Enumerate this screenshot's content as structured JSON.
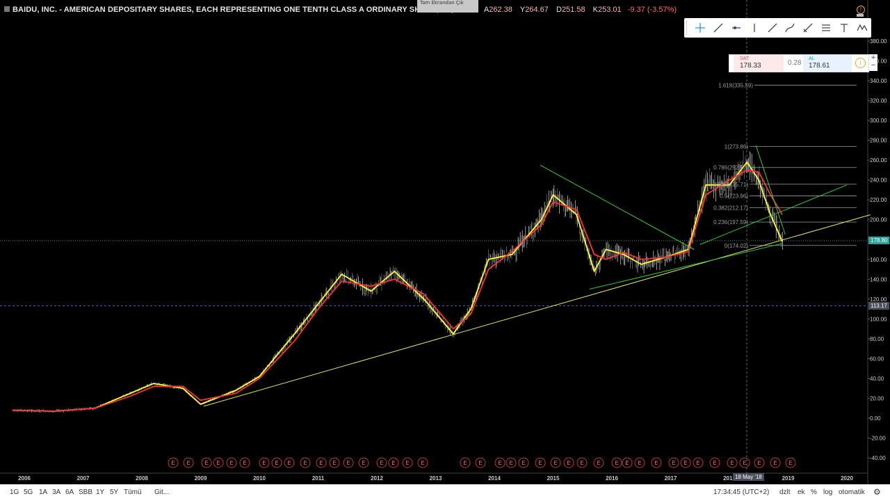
{
  "header": {
    "title": "BAIDU, INC. - AMERICAN DEPOSITARY SHARES, EACH REPRESENTING ONE TENTH CLASS A ORDINARY SHARE, 1G, BATS",
    "open_label": "A",
    "open": "262.38",
    "high_label": "Y",
    "high": "264.67",
    "low_label": "D",
    "low": "251.58",
    "close_label": "K",
    "close": "253.01",
    "change": "-9.37 (-3.57%)",
    "exit_fullscreen": "Tam Ekrandan Çık"
  },
  "trade_panel": {
    "sell_label": "SAT",
    "sell_price": "178.33",
    "spread": "0.28",
    "buy_label": "AL",
    "buy_price": "178.61",
    "plus": "+",
    "minus": "−"
  },
  "badges": {
    "last_price": "178.80",
    "crosshair_price": "113.17",
    "crosshair_date": "18 May '18"
  },
  "bottom_bar": {
    "ranges": [
      "1G",
      "5G",
      "1A",
      "3A",
      "6A",
      "SBB",
      "1Y",
      "5Y",
      "Tümü"
    ],
    "goto": "Git...",
    "clock": "17:34:45 (UTC+2)",
    "adjust": "dzlt",
    "ext": "ek",
    "percent": "%",
    "log": "log",
    "auto": "otomatik"
  },
  "toolbar_tools": [
    "crosshair-icon",
    "trend-line-icon",
    "horizontal-ray-icon",
    "vertical-line-icon",
    "ray-icon",
    "curve-icon",
    "brush-icon",
    "fib-lines-icon",
    "text-icon",
    "elliott-icon",
    "pattern-icon"
  ],
  "chart_data": {
    "type": "line",
    "y_ticks": [
      "380.00",
      "360.00",
      "340.00",
      "320.00",
      "300.00",
      "280.00",
      "260.00",
      "240.00",
      "220.00",
      "200.00",
      "180.00",
      "160.00",
      "140.00",
      "120.00",
      "100.00",
      "80.00",
      "60.00",
      "40.00",
      "20.00",
      "0.00",
      "-20.00",
      "-40.00"
    ],
    "x_ticks": [
      "2006",
      "2007",
      "2008",
      "2009",
      "2010",
      "2011",
      "2012",
      "2013",
      "2014",
      "2015",
      "2016",
      "2017",
      "2018",
      "2019",
      "2020"
    ],
    "ylim": [
      -40,
      380
    ],
    "fib_levels": [
      {
        "label": "1.618(335.59)",
        "value": 335.59
      },
      {
        "label": "1(273.86)",
        "value": 273.86
      },
      {
        "label": "0.786(252.57)",
        "value": 252.57
      },
      {
        "label": "0.618(235.71)",
        "value": 235.71
      },
      {
        "label": "0.5(223.96)",
        "value": 223.96
      },
      {
        "label": "0.382(212.17)",
        "value": 212.17
      },
      {
        "label": "0.236(197.59)",
        "value": 197.59
      },
      {
        "label": "0(174.02)",
        "value": 174.02
      }
    ],
    "earnings_marker": "E",
    "series": [
      {
        "color": "#ffff33",
        "x": [
          2005.8,
          2006.5,
          2007.2,
          2007.8,
          2008.2,
          2008.7,
          2009.0,
          2009.6,
          2010.0,
          2010.6,
          2011.0,
          2011.4,
          2011.9,
          2012.3,
          2012.8,
          2013.3,
          2013.6,
          2013.9,
          2014.3,
          2014.8,
          2015.0,
          2015.4,
          2015.7,
          2015.9,
          2016.2,
          2016.5,
          2016.9,
          2017.3,
          2017.6,
          2018.0,
          2018.3,
          2018.5,
          2018.7,
          2018.9
        ],
        "y": [
          8,
          7,
          10,
          25,
          35,
          30,
          14,
          28,
          42,
          85,
          115,
          145,
          128,
          148,
          120,
          85,
          110,
          160,
          165,
          200,
          225,
          205,
          148,
          170,
          165,
          155,
          162,
          170,
          235,
          235,
          258,
          240,
          205,
          178
        ]
      },
      {
        "color": "#ff3333",
        "x": [
          2005.8,
          2006.5,
          2007.2,
          2007.8,
          2008.2,
          2008.7,
          2009.0,
          2009.6,
          2010.0,
          2010.6,
          2011.0,
          2011.4,
          2011.9,
          2012.3,
          2012.8,
          2013.3,
          2013.6,
          2013.9,
          2014.3,
          2014.8,
          2015.0,
          2015.4,
          2015.7,
          2015.9,
          2016.2,
          2016.5,
          2016.9,
          2017.3,
          2017.6,
          2018.0,
          2018.3,
          2018.5,
          2018.7,
          2018.9
        ],
        "y": [
          8,
          7,
          10,
          22,
          32,
          32,
          18,
          25,
          40,
          78,
          110,
          138,
          133,
          140,
          125,
          90,
          105,
          150,
          168,
          195,
          218,
          210,
          165,
          160,
          167,
          160,
          162,
          168,
          225,
          240,
          250,
          248,
          225,
          205
        ]
      }
    ]
  }
}
